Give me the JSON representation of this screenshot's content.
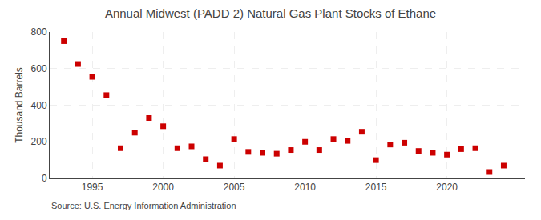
{
  "chart_data": {
    "type": "scatter",
    "title": "Annual Midwest (PADD 2) Natural Gas Plant Stocks of Ethane",
    "ylabel": "Thousand Barrels",
    "source": "Source: U.S. Energy Information Administration",
    "x": [
      1993,
      1994,
      1995,
      1996,
      1997,
      1998,
      1999,
      2000,
      2001,
      2002,
      2003,
      2004,
      2005,
      2006,
      2007,
      2008,
      2009,
      2010,
      2011,
      2012,
      2013,
      2014,
      2015,
      2016,
      2017,
      2018,
      2019,
      2020,
      2021,
      2022,
      2023,
      2024
    ],
    "values": [
      750,
      625,
      555,
      455,
      165,
      250,
      330,
      285,
      165,
      175,
      105,
      70,
      215,
      145,
      140,
      135,
      155,
      200,
      155,
      215,
      205,
      255,
      100,
      185,
      195,
      150,
      140,
      130,
      160,
      165,
      35,
      70
    ],
    "color": "#cc0000",
    "marker": "square",
    "xlim": [
      1992.0,
      2025.5
    ],
    "xticks": [
      1995,
      2000,
      2005,
      2010,
      2015,
      2020
    ],
    "ylim": [
      0,
      800
    ],
    "yticks": [
      0,
      200,
      400,
      600,
      800
    ],
    "grid": true
  }
}
